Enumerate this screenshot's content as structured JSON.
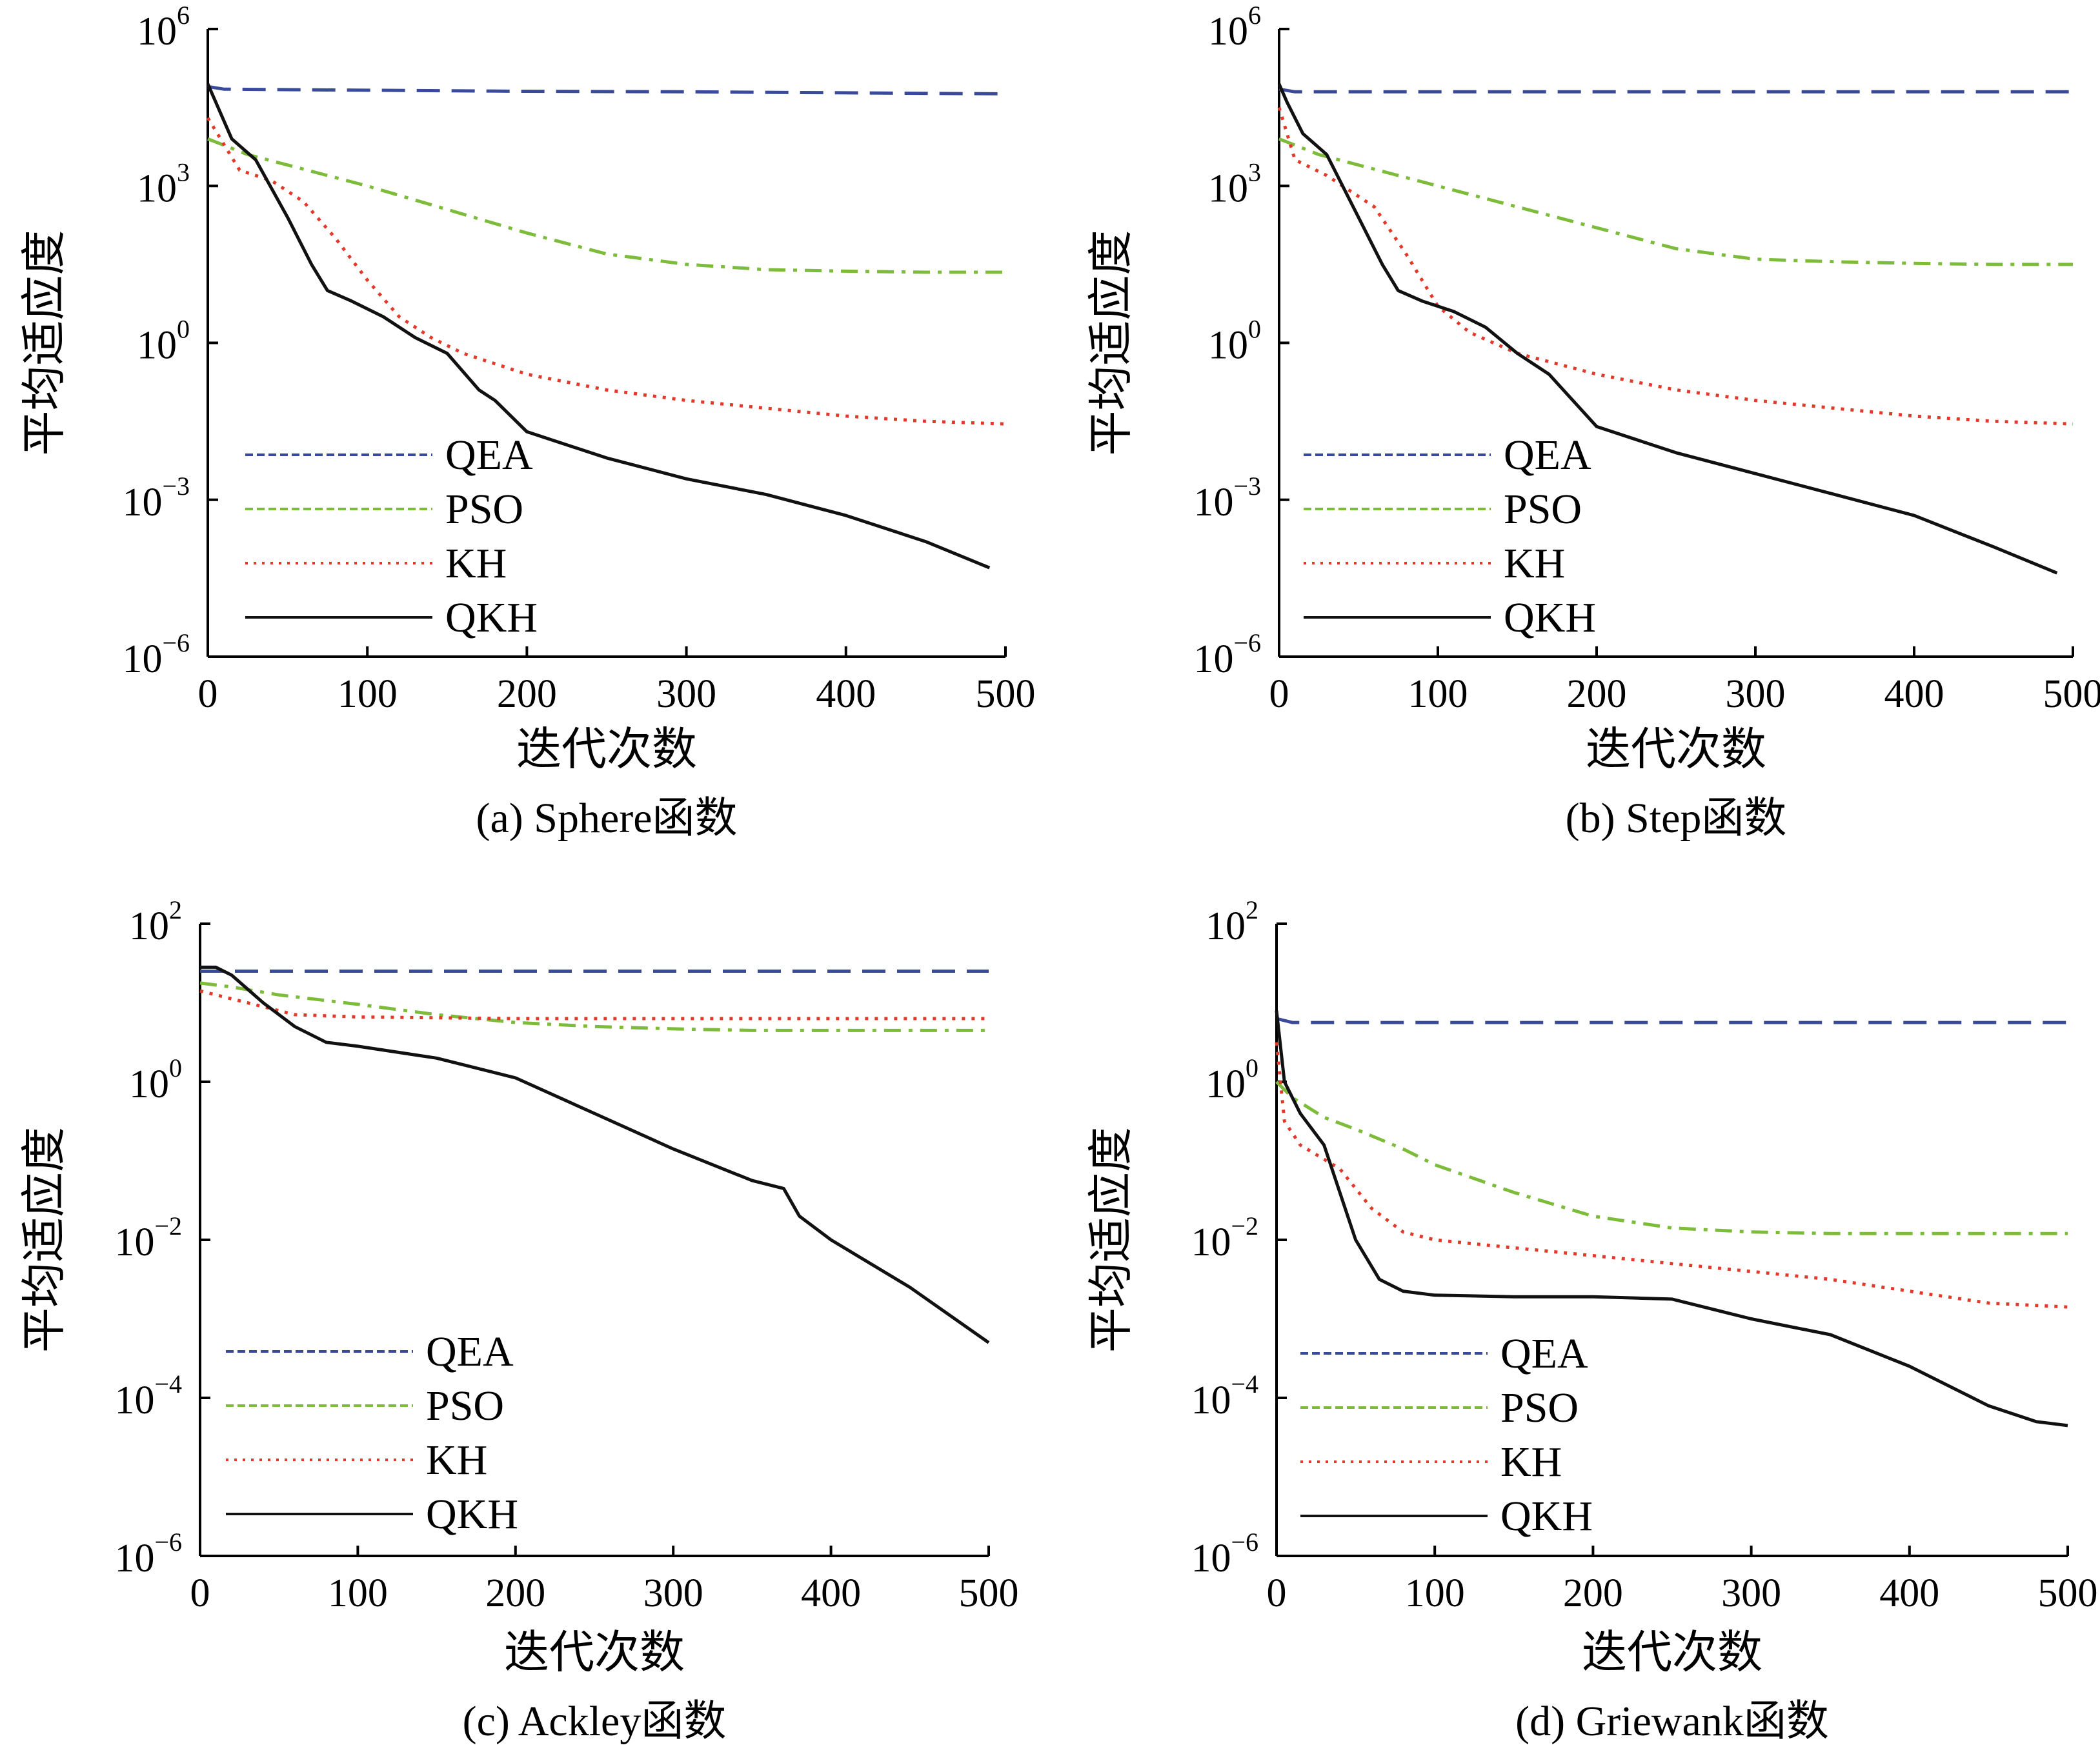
{
  "colors": {
    "QEA": "#3a4a9a",
    "PSO": "#7dbb3a",
    "KH": "#e23a2a",
    "QKH": "#111111"
  },
  "chart_data": [
    {
      "type": "line",
      "caption": "(a) Sphere函数",
      "xlabel": "迭代次数",
      "ylabel": "平均适应度",
      "xlim": [
        0,
        500
      ],
      "xticks": [
        "0",
        "100",
        "200",
        "300",
        "400",
        "500"
      ],
      "y_scale": "log",
      "ylim_exp": [
        -6,
        6
      ],
      "y_tick_exps": [
        "6",
        "3",
        "0",
        "−3",
        "−6"
      ],
      "y_tick_base": "10",
      "legend": {
        "position": "lower-left",
        "entries": [
          "QEA",
          "PSO",
          "KH",
          "QKH"
        ]
      },
      "series": [
        {
          "name": "QEA",
          "style": "dashed",
          "x": [
            0,
            10,
            100,
            200,
            300,
            400,
            500
          ],
          "log10_y": [
            4.9,
            4.85,
            4.83,
            4.81,
            4.8,
            4.78,
            4.76
          ]
        },
        {
          "name": "PSO",
          "style": "dashdot",
          "x": [
            0,
            25,
            50,
            100,
            150,
            200,
            250,
            300,
            350,
            400,
            450,
            500
          ],
          "log10_y": [
            3.9,
            3.6,
            3.4,
            3.0,
            2.55,
            2.1,
            1.7,
            1.5,
            1.4,
            1.37,
            1.35,
            1.35
          ]
        },
        {
          "name": "KH",
          "style": "dotted",
          "x": [
            0,
            20,
            40,
            60,
            80,
            100,
            120,
            140,
            160,
            200,
            250,
            300,
            350,
            400,
            450,
            500
          ],
          "log10_y": [
            4.3,
            3.3,
            3.1,
            2.7,
            2.0,
            1.2,
            0.5,
            0.1,
            -0.2,
            -0.6,
            -0.9,
            -1.1,
            -1.25,
            -1.4,
            -1.5,
            -1.55
          ]
        },
        {
          "name": "QKH",
          "style": "solid",
          "x": [
            0,
            5,
            15,
            30,
            50,
            65,
            75,
            90,
            110,
            130,
            150,
            170,
            180,
            200,
            250,
            300,
            350,
            400,
            450,
            490
          ],
          "log10_y": [
            4.95,
            4.6,
            3.9,
            3.5,
            2.4,
            1.5,
            1.0,
            0.8,
            0.5,
            0.1,
            -0.2,
            -0.9,
            -1.1,
            -1.7,
            -2.2,
            -2.6,
            -2.9,
            -3.3,
            -3.8,
            -4.3
          ]
        }
      ]
    },
    {
      "type": "line",
      "caption": "(b) Step函数",
      "xlabel": "迭代次数",
      "ylabel": "平均适应度",
      "xlim": [
        0,
        500
      ],
      "xticks": [
        "0",
        "100",
        "200",
        "300",
        "400",
        "500"
      ],
      "y_scale": "log",
      "ylim_exp": [
        -6,
        6
      ],
      "y_tick_exps": [
        "6",
        "3",
        "0",
        "−3",
        "−6"
      ],
      "y_tick_base": "10",
      "legend": {
        "position": "lower-left",
        "entries": [
          "QEA",
          "PSO",
          "KH",
          "QKH"
        ]
      },
      "series": [
        {
          "name": "QEA",
          "style": "dashed",
          "x": [
            0,
            10,
            100,
            200,
            300,
            400,
            500
          ],
          "log10_y": [
            4.85,
            4.8,
            4.8,
            4.8,
            4.8,
            4.8,
            4.8
          ]
        },
        {
          "name": "PSO",
          "style": "dashdot",
          "x": [
            0,
            25,
            50,
            100,
            150,
            200,
            250,
            300,
            350,
            400,
            450,
            500
          ],
          "log10_y": [
            3.9,
            3.6,
            3.4,
            3.0,
            2.6,
            2.2,
            1.8,
            1.6,
            1.55,
            1.52,
            1.5,
            1.5
          ]
        },
        {
          "name": "KH",
          "style": "dotted",
          "x": [
            0,
            10,
            30,
            60,
            80,
            100,
            120,
            150,
            200,
            250,
            300,
            350,
            400,
            450,
            500
          ],
          "log10_y": [
            4.5,
            3.5,
            3.2,
            2.6,
            1.7,
            0.7,
            0.2,
            -0.2,
            -0.6,
            -0.9,
            -1.1,
            -1.25,
            -1.4,
            -1.5,
            -1.55
          ]
        },
        {
          "name": "QKH",
          "style": "solid",
          "x": [
            0,
            5,
            15,
            30,
            50,
            65,
            75,
            90,
            110,
            130,
            150,
            170,
            200,
            250,
            300,
            350,
            400,
            450,
            490
          ],
          "log10_y": [
            4.95,
            4.6,
            4.0,
            3.6,
            2.4,
            1.5,
            1.0,
            0.8,
            0.6,
            0.3,
            -0.2,
            -0.6,
            -1.6,
            -2.1,
            -2.5,
            -2.9,
            -3.3,
            -3.9,
            -4.4
          ]
        }
      ]
    },
    {
      "type": "line",
      "caption": "(c) Ackley函数",
      "xlabel": "迭代次数",
      "ylabel": "平均适应度",
      "xlim": [
        0,
        500
      ],
      "xticks": [
        "0",
        "100",
        "200",
        "300",
        "400",
        "500"
      ],
      "y_scale": "log",
      "ylim_exp": [
        -6,
        2
      ],
      "y_tick_exps": [
        "2",
        "0",
        "−2",
        "−4",
        "−6"
      ],
      "y_tick_base": "10",
      "legend": {
        "position": "lower-left",
        "entries": [
          "QEA",
          "PSO",
          "KH",
          "QKH"
        ]
      },
      "series": [
        {
          "name": "QEA",
          "style": "dashed",
          "x": [
            0,
            10,
            100,
            200,
            300,
            400,
            500
          ],
          "log10_y": [
            1.4,
            1.4,
            1.4,
            1.4,
            1.4,
            1.4,
            1.4
          ]
        },
        {
          "name": "PSO",
          "style": "dashdot",
          "x": [
            0,
            20,
            50,
            100,
            150,
            200,
            250,
            300,
            350,
            400,
            450,
            500
          ],
          "log10_y": [
            1.25,
            1.2,
            1.1,
            0.98,
            0.85,
            0.75,
            0.7,
            0.67,
            0.65,
            0.65,
            0.65,
            0.65
          ]
        },
        {
          "name": "KH",
          "style": "dotted",
          "x": [
            0,
            20,
            40,
            60,
            100,
            150,
            200,
            250,
            300,
            350,
            400,
            450,
            500
          ],
          "log10_y": [
            1.15,
            1.05,
            0.95,
            0.85,
            0.82,
            0.81,
            0.8,
            0.8,
            0.8,
            0.8,
            0.8,
            0.8,
            0.8
          ]
        },
        {
          "name": "QKH",
          "style": "solid",
          "x": [
            0,
            10,
            20,
            40,
            60,
            80,
            100,
            150,
            200,
            250,
            300,
            350,
            370,
            380,
            400,
            450,
            500
          ],
          "log10_y": [
            1.45,
            1.45,
            1.35,
            1.0,
            0.7,
            0.5,
            0.45,
            0.3,
            0.05,
            -0.4,
            -0.85,
            -1.25,
            -1.35,
            -1.7,
            -2.0,
            -2.6,
            -3.3
          ]
        }
      ]
    },
    {
      "type": "line",
      "caption": "(d) Griewank函数",
      "xlabel": "迭代次数",
      "ylabel": "平均适应度",
      "xlim": [
        0,
        500
      ],
      "xticks": [
        "0",
        "100",
        "200",
        "300",
        "400",
        "500"
      ],
      "y_scale": "log",
      "ylim_exp": [
        -6,
        2
      ],
      "y_tick_exps": [
        "2",
        "0",
        "−2",
        "−4",
        "−6"
      ],
      "y_tick_base": "10",
      "legend": {
        "position": "lower-left",
        "entries": [
          "QEA",
          "PSO",
          "KH",
          "QKH"
        ]
      },
      "series": [
        {
          "name": "QEA",
          "style": "dashed",
          "x": [
            0,
            10,
            100,
            200,
            300,
            400,
            500
          ],
          "log10_y": [
            0.8,
            0.75,
            0.75,
            0.75,
            0.75,
            0.75,
            0.75
          ]
        },
        {
          "name": "PSO",
          "style": "dashdot",
          "x": [
            0,
            10,
            30,
            50,
            80,
            100,
            150,
            200,
            250,
            300,
            350,
            400,
            450,
            500
          ],
          "log10_y": [
            0.0,
            -0.2,
            -0.45,
            -0.6,
            -0.85,
            -1.05,
            -1.4,
            -1.7,
            -1.85,
            -1.9,
            -1.92,
            -1.92,
            -1.92,
            -1.92
          ]
        },
        {
          "name": "KH",
          "style": "dotted",
          "x": [
            0,
            5,
            15,
            40,
            60,
            80,
            100,
            150,
            200,
            250,
            300,
            350,
            400,
            450,
            500
          ],
          "log10_y": [
            0.5,
            -0.5,
            -0.8,
            -1.1,
            -1.6,
            -1.9,
            -2.0,
            -2.1,
            -2.2,
            -2.3,
            -2.4,
            -2.5,
            -2.65,
            -2.8,
            -2.85
          ]
        },
        {
          "name": "QKH",
          "style": "solid",
          "x": [
            0,
            5,
            15,
            30,
            50,
            65,
            80,
            100,
            150,
            200,
            250,
            300,
            350,
            400,
            420,
            450,
            480,
            500
          ],
          "log10_y": [
            0.9,
            0.0,
            -0.4,
            -0.8,
            -2.0,
            -2.5,
            -2.65,
            -2.7,
            -2.72,
            -2.72,
            -2.75,
            -3.0,
            -3.2,
            -3.6,
            -3.8,
            -4.1,
            -4.3,
            -4.35
          ]
        }
      ]
    }
  ]
}
